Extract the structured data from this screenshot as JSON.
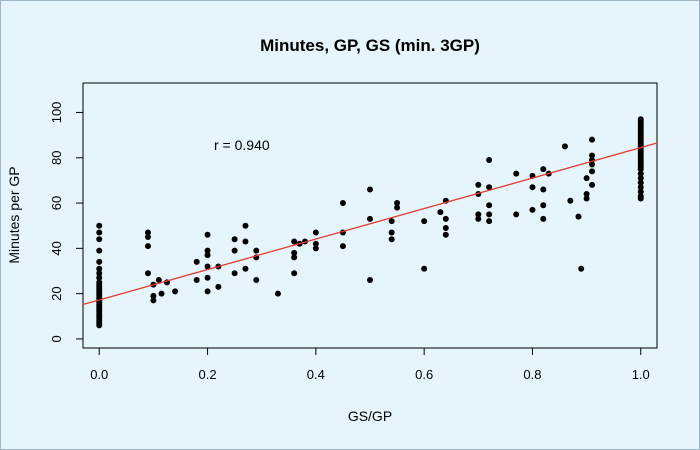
{
  "chart_data": {
    "type": "scatter",
    "title": "Minutes, GP, GS (min. 3GP)",
    "xlabel": "GS/GP",
    "ylabel": "Minutes per GP",
    "xlim": [
      -0.03,
      1.03
    ],
    "ylim": [
      -4,
      113
    ],
    "xticks": [
      "0.0",
      "0.2",
      "0.4",
      "0.6",
      "0.8",
      "1.0"
    ],
    "yticks": [
      "0",
      "20",
      "40",
      "60",
      "80",
      "100"
    ],
    "grid": false,
    "annotation": "r = 0.940",
    "point_color": "#000000",
    "fit_line_color": "#e03c31",
    "fit_line": {
      "intercept": 17.2,
      "slope": 67.3
    },
    "points": [
      [
        0.0,
        50
      ],
      [
        0.0,
        47
      ],
      [
        0.0,
        44
      ],
      [
        0.0,
        39
      ],
      [
        0.0,
        34
      ],
      [
        0.0,
        31
      ],
      [
        0.0,
        29
      ],
      [
        0.0,
        27
      ],
      [
        0.0,
        25
      ],
      [
        0.0,
        24
      ],
      [
        0.0,
        23
      ],
      [
        0.0,
        22
      ],
      [
        0.0,
        21
      ],
      [
        0.0,
        20
      ],
      [
        0.0,
        19
      ],
      [
        0.0,
        18
      ],
      [
        0.0,
        17
      ],
      [
        0.0,
        16
      ],
      [
        0.0,
        15
      ],
      [
        0.0,
        14
      ],
      [
        0.0,
        13
      ],
      [
        0.0,
        12
      ],
      [
        0.0,
        11
      ],
      [
        0.0,
        10
      ],
      [
        0.0,
        9
      ],
      [
        0.0,
        8
      ],
      [
        0.0,
        7
      ],
      [
        0.0,
        6
      ],
      [
        0.09,
        47
      ],
      [
        0.09,
        45
      ],
      [
        0.09,
        41
      ],
      [
        0.09,
        29
      ],
      [
        0.1,
        24
      ],
      [
        0.1,
        19
      ],
      [
        0.1,
        17
      ],
      [
        0.11,
        26
      ],
      [
        0.115,
        20
      ],
      [
        0.125,
        25
      ],
      [
        0.14,
        21
      ],
      [
        0.18,
        34
      ],
      [
        0.18,
        26
      ],
      [
        0.2,
        46
      ],
      [
        0.2,
        39
      ],
      [
        0.2,
        37
      ],
      [
        0.2,
        32
      ],
      [
        0.2,
        27
      ],
      [
        0.2,
        21
      ],
      [
        0.22,
        32
      ],
      [
        0.22,
        23
      ],
      [
        0.25,
        44
      ],
      [
        0.25,
        39
      ],
      [
        0.25,
        29
      ],
      [
        0.27,
        50
      ],
      [
        0.27,
        43
      ],
      [
        0.27,
        31
      ],
      [
        0.29,
        39
      ],
      [
        0.29,
        36
      ],
      [
        0.29,
        26
      ],
      [
        0.33,
        20
      ],
      [
        0.36,
        43
      ],
      [
        0.36,
        38
      ],
      [
        0.36,
        36
      ],
      [
        0.36,
        29
      ],
      [
        0.37,
        42
      ],
      [
        0.38,
        43
      ],
      [
        0.4,
        47
      ],
      [
        0.4,
        42
      ],
      [
        0.4,
        40
      ],
      [
        0.45,
        60
      ],
      [
        0.45,
        47
      ],
      [
        0.45,
        41
      ],
      [
        0.5,
        66
      ],
      [
        0.5,
        53
      ],
      [
        0.5,
        26
      ],
      [
        0.54,
        52
      ],
      [
        0.54,
        47
      ],
      [
        0.54,
        44
      ],
      [
        0.55,
        60
      ],
      [
        0.55,
        58
      ],
      [
        0.6,
        52
      ],
      [
        0.6,
        31
      ],
      [
        0.63,
        56
      ],
      [
        0.64,
        61
      ],
      [
        0.64,
        53
      ],
      [
        0.64,
        49
      ],
      [
        0.64,
        46
      ],
      [
        0.7,
        68
      ],
      [
        0.7,
        64
      ],
      [
        0.7,
        55
      ],
      [
        0.7,
        53
      ],
      [
        0.72,
        79
      ],
      [
        0.72,
        67
      ],
      [
        0.72,
        59
      ],
      [
        0.72,
        55
      ],
      [
        0.72,
        52
      ],
      [
        0.77,
        73
      ],
      [
        0.77,
        55
      ],
      [
        0.8,
        72
      ],
      [
        0.8,
        67
      ],
      [
        0.8,
        57
      ],
      [
        0.82,
        75
      ],
      [
        0.82,
        66
      ],
      [
        0.82,
        59
      ],
      [
        0.82,
        53
      ],
      [
        0.83,
        73
      ],
      [
        0.86,
        85
      ],
      [
        0.87,
        61
      ],
      [
        0.885,
        54
      ],
      [
        0.89,
        31
      ],
      [
        0.9,
        71
      ],
      [
        0.9,
        64
      ],
      [
        0.9,
        62
      ],
      [
        0.91,
        88
      ],
      [
        0.91,
        81
      ],
      [
        0.91,
        79
      ],
      [
        0.91,
        77
      ],
      [
        0.91,
        74
      ],
      [
        0.91,
        68
      ],
      [
        1.0,
        97
      ],
      [
        1.0,
        96
      ],
      [
        1.0,
        95
      ],
      [
        1.0,
        94
      ],
      [
        1.0,
        93
      ],
      [
        1.0,
        92
      ],
      [
        1.0,
        91
      ],
      [
        1.0,
        90
      ],
      [
        1.0,
        89
      ],
      [
        1.0,
        88
      ],
      [
        1.0,
        87
      ],
      [
        1.0,
        86
      ],
      [
        1.0,
        85
      ],
      [
        1.0,
        84
      ],
      [
        1.0,
        83
      ],
      [
        1.0,
        82
      ],
      [
        1.0,
        81
      ],
      [
        1.0,
        80
      ],
      [
        1.0,
        79
      ],
      [
        1.0,
        78
      ],
      [
        1.0,
        77
      ],
      [
        1.0,
        76
      ],
      [
        1.0,
        75
      ],
      [
        1.0,
        73
      ],
      [
        1.0,
        71
      ],
      [
        1.0,
        69
      ],
      [
        1.0,
        67
      ],
      [
        1.0,
        65
      ],
      [
        1.0,
        63
      ],
      [
        1.0,
        62
      ]
    ]
  }
}
